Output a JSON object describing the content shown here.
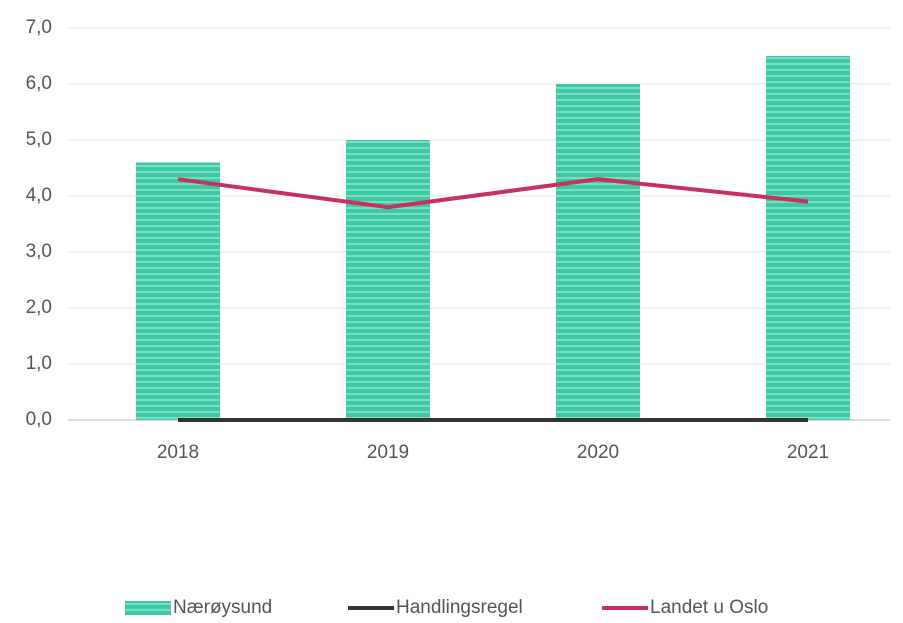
{
  "chart_data": {
    "type": "bar_line",
    "categories": [
      "2018",
      "2019",
      "2020",
      "2021"
    ],
    "series": [
      {
        "name": "Nærøysund",
        "type": "bar",
        "color": "#3cc9a6",
        "values": [
          4.6,
          5.0,
          6.0,
          6.5
        ]
      },
      {
        "name": "Handlingsregel",
        "type": "line",
        "color": "#333333",
        "values": [
          0,
          0,
          0,
          0
        ]
      },
      {
        "name": "Landet u Oslo",
        "type": "line",
        "color": "#c8305f",
        "values": [
          4.3,
          3.8,
          4.3,
          3.9
        ]
      }
    ],
    "ylim": [
      0,
      7
    ],
    "yticks": [
      {
        "value": 0,
        "label": "0,0"
      },
      {
        "value": 1,
        "label": "1,0"
      },
      {
        "value": 2,
        "label": "2,0"
      },
      {
        "value": 3,
        "label": "3,0"
      },
      {
        "value": 4,
        "label": "4,0"
      },
      {
        "value": 5,
        "label": "5,0"
      },
      {
        "value": 6,
        "label": "6,0"
      },
      {
        "value": 7,
        "label": "7,0"
      }
    ],
    "grid": true,
    "legend": "bottom"
  }
}
